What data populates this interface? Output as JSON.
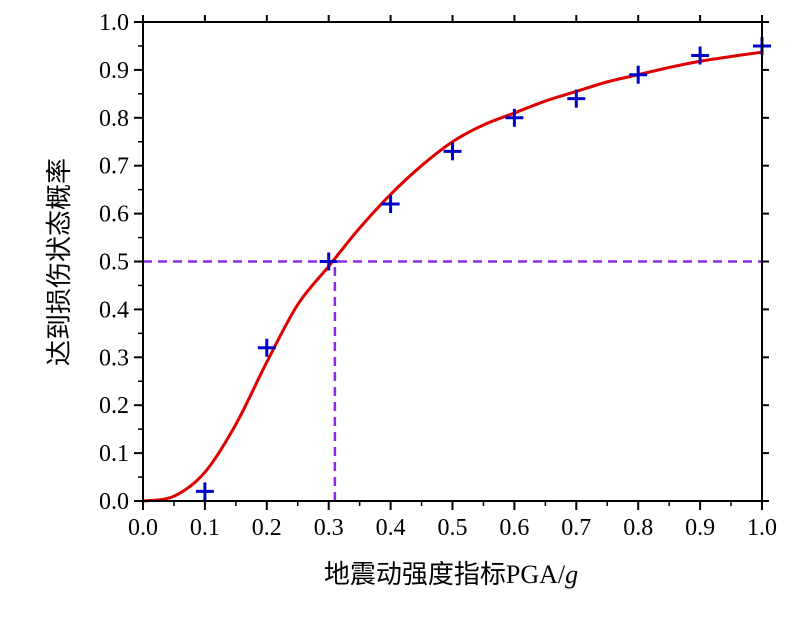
{
  "chart_data": {
    "type": "scatter",
    "title": "",
    "xlabel": "地震动强度指标PGA/",
    "xlabel_italic_suffix": "g",
    "ylabel": "达到损伤状态概率",
    "xlim": [
      0.0,
      1.0
    ],
    "ylim": [
      0.0,
      1.0
    ],
    "xticks": [
      "0.0",
      "0.1",
      "0.2",
      "0.3",
      "0.4",
      "0.5",
      "0.6",
      "0.7",
      "0.8",
      "0.9",
      "1.0"
    ],
    "yticks": [
      "0.0",
      "0.1",
      "0.2",
      "0.3",
      "0.4",
      "0.5",
      "0.6",
      "0.7",
      "0.8",
      "0.9",
      "1.0"
    ],
    "grid": false,
    "legend": "none",
    "series": [
      {
        "kind": "points",
        "marker": "plus",
        "color": "#0000cc",
        "x": [
          0.1,
          0.2,
          0.3,
          0.4,
          0.5,
          0.6,
          0.7,
          0.8,
          0.9,
          1.0
        ],
        "y": [
          0.02,
          0.32,
          0.5,
          0.62,
          0.73,
          0.8,
          0.84,
          0.89,
          0.93,
          0.95
        ]
      },
      {
        "kind": "curve",
        "color": "#dd0000",
        "x": [
          0.0,
          0.05,
          0.1,
          0.15,
          0.2,
          0.25,
          0.3,
          0.35,
          0.4,
          0.45,
          0.5,
          0.55,
          0.6,
          0.65,
          0.7,
          0.75,
          0.8,
          0.85,
          0.9,
          0.95,
          1.0
        ],
        "y": [
          0.0,
          0.01,
          0.06,
          0.16,
          0.29,
          0.41,
          0.49,
          0.57,
          0.64,
          0.7,
          0.75,
          0.785,
          0.81,
          0.835,
          0.855,
          0.875,
          0.89,
          0.905,
          0.918,
          0.928,
          0.937
        ]
      }
    ],
    "reference_lines": [
      {
        "kind": "horizontal",
        "y": 0.5,
        "x_from": 0.0,
        "x_to": 1.0,
        "color": "#8a2be2",
        "style": "dashed"
      },
      {
        "kind": "vertical",
        "x": 0.31,
        "y_from": 0.0,
        "y_to": 0.5,
        "color": "#8a2be2",
        "style": "dashed"
      }
    ]
  }
}
